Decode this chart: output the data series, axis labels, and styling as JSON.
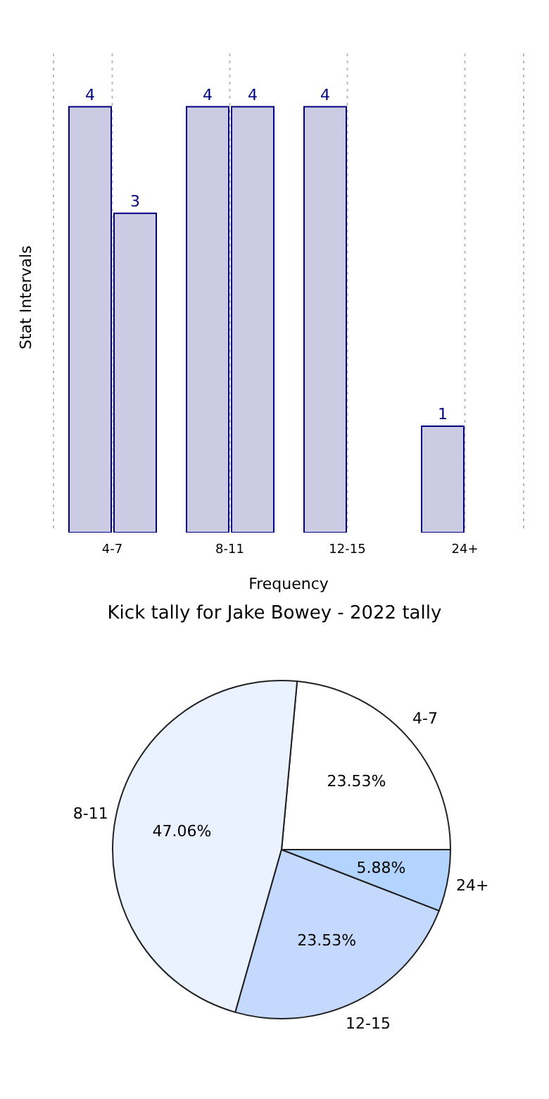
{
  "chart_data": [
    {
      "type": "bar",
      "xlabel": "Frequency",
      "ylabel": "Stat Intervals",
      "categories": [
        "4-7",
        "8-11",
        "12-15",
        "24+"
      ],
      "series": [
        {
          "color": "#cbcbe3",
          "values": [
            4,
            4,
            4,
            1
          ]
        },
        {
          "color": "#cbcbe3",
          "values": [
            3,
            4,
            null,
            null
          ]
        }
      ],
      "ylim": [
        0,
        4.5
      ],
      "tick_labels": "x",
      "grid": "x",
      "data_labels": true,
      "legend": false
    },
    {
      "type": "pie",
      "title": "Kick tally for Jake Bowey - 2022 tally",
      "categories": [
        "4-7",
        "8-11",
        "12-15",
        "24+"
      ],
      "values": [
        23.53,
        47.06,
        23.53,
        5.88
      ],
      "value_labels": [
        "23.53%",
        "47.06%",
        "23.53%",
        "5.88%"
      ],
      "colors": [
        "#ffffff",
        "#ebf2ff",
        "#c5d9ff",
        "#b3d4ff"
      ],
      "legend": false
    }
  ]
}
